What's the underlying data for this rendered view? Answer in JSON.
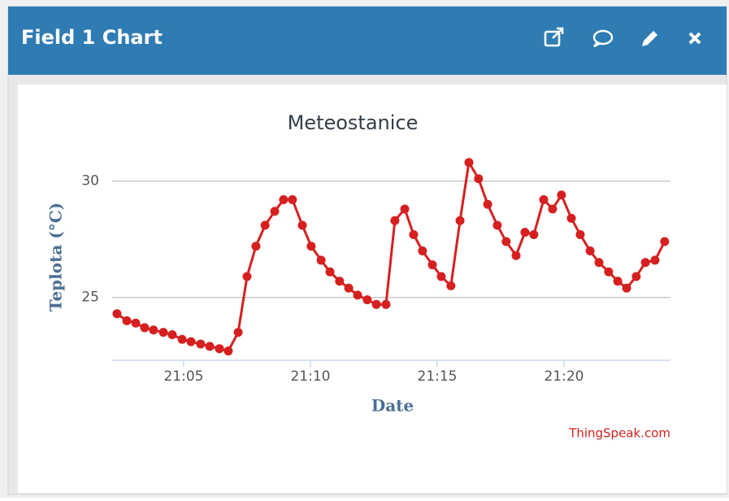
{
  "header": {
    "title": "Field 1 Chart"
  },
  "chart_data": {
    "type": "line",
    "title": "Meteostanice",
    "xlabel": "Date",
    "ylabel": "Teplota (°C)",
    "credits": "ThingSpeak.com",
    "color": "#d62020",
    "grid": true,
    "x": [
      2.37,
      2.76,
      3.11,
      3.46,
      3.81,
      4.2,
      4.55,
      4.94,
      5.29,
      5.67,
      6.03,
      6.41,
      6.76,
      7.15,
      7.5,
      7.85,
      8.21,
      8.59,
      8.94,
      9.29,
      9.68,
      10.03,
      10.42,
      10.77,
      11.15,
      11.51,
      11.86,
      12.24,
      12.6,
      12.98,
      13.33,
      13.72,
      14.07,
      14.42,
      14.81,
      15.16,
      15.54,
      15.9,
      16.25,
      16.63,
      16.99,
      17.37,
      17.72,
      18.11,
      18.46,
      18.81,
      19.2,
      19.55,
      19.9,
      20.29,
      20.64,
      21.03,
      21.38,
      21.76,
      22.12,
      22.47,
      22.85,
      23.21,
      23.59,
      23.97
    ],
    "values": [
      24.3,
      24.0,
      23.9,
      23.7,
      23.6,
      23.5,
      23.4,
      23.2,
      23.1,
      23.0,
      22.9,
      22.8,
      22.7,
      23.5,
      25.9,
      27.2,
      28.1,
      28.7,
      29.2,
      29.2,
      28.1,
      27.2,
      26.6,
      26.1,
      25.7,
      25.4,
      25.1,
      24.9,
      24.7,
      24.7,
      28.3,
      28.8,
      27.7,
      27.0,
      26.4,
      25.9,
      25.5,
      28.3,
      30.8,
      30.1,
      29.0,
      28.1,
      27.4,
      26.8,
      27.8,
      27.7,
      29.2,
      28.8,
      29.4,
      28.4,
      27.7,
      27.0,
      26.5,
      26.1,
      25.7,
      25.4,
      25.9,
      26.5,
      26.6,
      27.4
    ],
    "xlim": [
      2.18,
      24.2
    ],
    "ylim": [
      22.3,
      31.0
    ],
    "xticks": [
      {
        "value": 5,
        "label": "21:05"
      },
      {
        "value": 10,
        "label": "21:10"
      },
      {
        "value": 15,
        "label": "21:15"
      },
      {
        "value": 20,
        "label": "21:20"
      }
    ],
    "yticks": [
      25,
      30
    ]
  }
}
